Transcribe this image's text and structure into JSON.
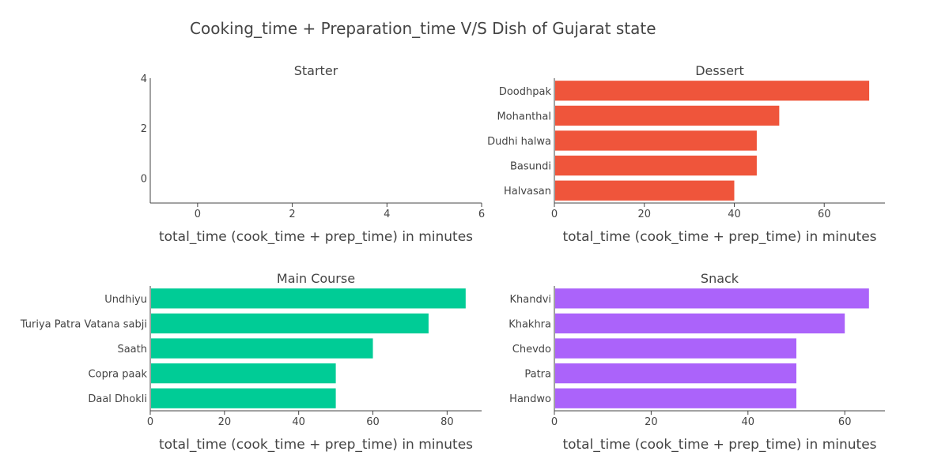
{
  "title": "Cooking_time + Preparation_time V/S Dish of Gujarat state",
  "chart_data": [
    {
      "type": "bar",
      "orientation": "horizontal",
      "title": "Starter",
      "categories": [],
      "values": [],
      "xlabel": "total_time (cook_time + prep_time) in minutes",
      "xlim": [
        -1,
        6
      ],
      "xticks": [
        0,
        2,
        4,
        6
      ],
      "ylim": [
        -1,
        4
      ],
      "yticks": [
        0,
        2,
        4
      ],
      "color": ""
    },
    {
      "type": "bar",
      "orientation": "horizontal",
      "title": "Dessert",
      "categories": [
        "Doodhpak",
        "Mohanthal",
        "Dudhi halwa",
        "Basundi",
        "Halvasan"
      ],
      "values": [
        70,
        50,
        45,
        45,
        40
      ],
      "xlabel": "total_time (cook_time + prep_time) in minutes",
      "xlim": [
        0,
        73.5
      ],
      "xticks": [
        0,
        20,
        40,
        60
      ],
      "color": "#EF553B"
    },
    {
      "type": "bar",
      "orientation": "horizontal",
      "title": "Main Course",
      "categories": [
        "Undhiyu",
        "Turiya Patra Vatana sabji",
        "Saath",
        "Copra paak",
        "Daal Dhokli"
      ],
      "values": [
        85,
        75,
        60,
        50,
        50
      ],
      "xlabel": "total_time (cook_time + prep_time) in minutes",
      "xlim": [
        0,
        89.3
      ],
      "xticks": [
        0,
        20,
        40,
        60,
        80
      ],
      "color": "#00CC96"
    },
    {
      "type": "bar",
      "orientation": "horizontal",
      "title": "Snack",
      "categories": [
        "Khandvi",
        "Khakhra",
        "Chevdo",
        "Patra",
        "Handwo"
      ],
      "values": [
        65,
        60,
        50,
        50,
        50
      ],
      "xlabel": "total_time (cook_time + prep_time) in minutes",
      "xlim": [
        0,
        68.3
      ],
      "xticks": [
        0,
        20,
        40,
        60
      ],
      "color": "#AB63FA"
    }
  ]
}
